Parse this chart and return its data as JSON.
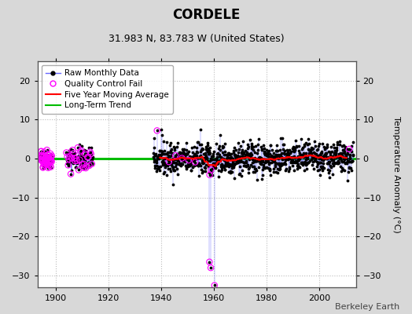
{
  "title": "CORDELE",
  "subtitle": "31.983 N, 83.783 W (United States)",
  "ylabel": "Temperature Anomaly (°C)",
  "watermark": "Berkeley Earth",
  "xlim": [
    1893,
    2014
  ],
  "ylim": [
    -33,
    25
  ],
  "yticks": [
    -30,
    -20,
    -10,
    0,
    10,
    20
  ],
  "xticks": [
    1900,
    1920,
    1940,
    1960,
    1980,
    2000
  ],
  "bg_color": "#d8d8d8",
  "plot_bg_color": "#ffffff",
  "grid_color": "#bbbbbb",
  "raw_line_color": "#6666ff",
  "raw_dot_color": "#000000",
  "qc_fail_color": "#ff00ff",
  "moving_avg_color": "#ff0000",
  "trend_color": "#00bb00",
  "raw_dot_size": 3,
  "qc_fail_size": 28,
  "moving_avg_lw": 1.5,
  "trend_lw": 2.2,
  "title_fontsize": 12,
  "subtitle_fontsize": 9,
  "ylabel_fontsize": 8,
  "tick_fontsize": 8,
  "legend_fontsize": 7.5,
  "watermark_fontsize": 8,
  "seed": 42
}
